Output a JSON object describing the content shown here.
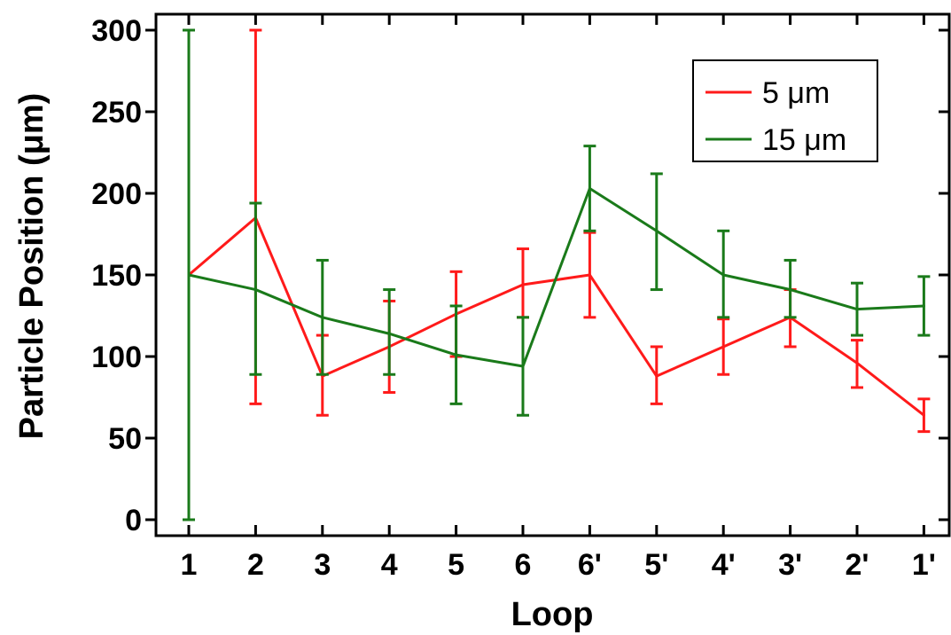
{
  "chart_data": {
    "type": "line",
    "xlabel": "Loop",
    "ylabel": "Particle Position (μm)",
    "categories": [
      "1",
      "2",
      "3",
      "4",
      "5",
      "6",
      "6'",
      "5'",
      "4'",
      "3'",
      "2'",
      "1'"
    ],
    "ylim": [
      0,
      310
    ],
    "yticks": [
      0,
      50,
      100,
      150,
      200,
      250,
      300
    ],
    "grid": false,
    "legend_position": "top-right",
    "series": [
      {
        "name": "5 μm",
        "color": "#ff1a1a",
        "values": [
          150,
          185,
          88,
          106,
          126,
          144,
          150,
          88,
          106,
          124,
          96,
          64
        ],
        "error_low": [
          150,
          71,
          64,
          78,
          100,
          124,
          124,
          71,
          89,
          106,
          81,
          54
        ],
        "error_high": [
          150,
          300,
          113,
          134,
          152,
          166,
          176,
          106,
          123,
          141,
          110,
          74
        ]
      },
      {
        "name": "15 μm",
        "color": "#1a7a1a",
        "values": [
          150,
          141,
          124,
          114,
          101,
          94,
          203,
          177,
          150,
          141,
          129,
          131
        ],
        "error_low": [
          0,
          89,
          89,
          89,
          71,
          64,
          177,
          141,
          124,
          124,
          113,
          113
        ],
        "error_high": [
          300,
          194,
          159,
          141,
          131,
          124,
          229,
          212,
          177,
          159,
          145,
          149
        ]
      }
    ]
  }
}
